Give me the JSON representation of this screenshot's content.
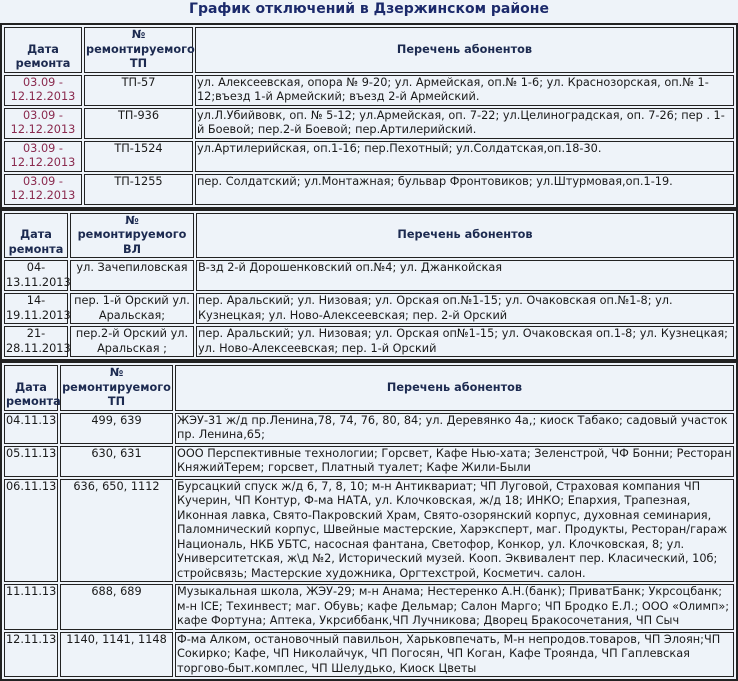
{
  "title": "График отключений в Дзержинском районе",
  "colors": {
    "title": "#1c2a6b",
    "date_highlight": "#8a2a4e",
    "background": "#eef3f9"
  },
  "table_tp": {
    "headers": [
      "Дата ремонта",
      "№ ремонтируемого ТП",
      "Перечень абонентов"
    ],
    "rows": [
      {
        "date": "03.09 - 12.12.2013",
        "id": "ТП-57",
        "subscribers": "ул. Алексеевская, опора № 9-20; ул. Армейская, оп.№ 1-6; ул. Краснозорская, оп.№ 1-12;въезд 1-й Армейский; въезд 2-й Армейский."
      },
      {
        "date": "03.09 - 12.12.2013",
        "id": "ТП-936",
        "subscribers": "ул.Л.Убийвовк, оп. № 5-12; ул.Армейская, оп. 7-22; ул.Целиноградская, оп. 7-26; пер . 1-й Боевой; пер.2-й Боевой; пер.Артилерийский."
      },
      {
        "date": "03.09 - 12.12.2013",
        "id": "ТП-1524",
        "subscribers": "ул.Артилерийская, оп.1-16; пер.Пехотный; ул.Солдатская,оп.18-30."
      },
      {
        "date": "03.09 - 12.12.2013",
        "id": "ТП-1255",
        "subscribers": "пер. Солдатский; ул.Монтажная; бульвар Фронтовиков; ул.Штурмовая,оп.1-19."
      }
    ]
  },
  "table_vl": {
    "headers": [
      "Дата ремонта",
      "№ ремонтируемого ВЛ",
      "Перечень абонентов"
    ],
    "rows": [
      {
        "date": "04-13.11.2013",
        "id": "ул. Зачепиловская",
        "subscribers": "В-зд 2-й Дорошенковский оп.№4; ул. Джанкойская"
      },
      {
        "date": "14-19.11.2013",
        "id": "пер. 1-й Орский ул. Аральская;",
        "subscribers": "пер. Аральский; ул. Низовая; ул. Орская оп.№1-15; ул. Очаковская оп.№1-8; ул. Кузнецкая; ул. Ново-Алексеевская; пер. 2-й Орский"
      },
      {
        "date": "21-28.11.2013",
        "id": "пер.2-й Орский ул. Аральская ;",
        "subscribers": "пер. Аральский; ул. Низовая; ул. Орская оп№1-15; ул. Очаковская оп.1-8; ул. Кузнецкая; ул. Ново-Алексеевская; пер. 1-й Орский"
      }
    ]
  },
  "table_tp2": {
    "headers": [
      "Дата ремонта",
      "№ ремонтируемого ТП",
      "Перечень абонентов"
    ],
    "rows": [
      {
        "date": "04.11.13",
        "id": "499, 639",
        "subscribers": "ЖЭУ-31 ж/д пр.Ленина,78, 74, 76, 80, 84; ул. Деревянко 4а,; киоск Табако; садовый участок пр. Ленина,65;"
      },
      {
        "date": "05.11.13",
        "id": "630, 631",
        "subscribers": "ООО Перспективные технологии; Горсвет, Кафе Нью-хата; Зеленстрой, ЧФ Бонни; Ресторан КняжийТерем; горсвет, Платный туалет; Кафе Жили-Были"
      },
      {
        "date": "06.11.13",
        "id": "636, 650, 1112",
        "subscribers": "Бурсацкий спуск ж/д 6, 7, 8, 10; м-н Антиквариат; ЧП Луговой, Страховая компания ЧП Кучерин, ЧП Контур, Ф-ма НАТА, ул. Клочковская, ж/д 18; ИНКО; Епархия, Трапезная, Иконная лавка, Свято-Пакровский Храм, Свято-озорянский корпус, духовная семинария, Паломнический корпус, Швейные мастерские, Харэксперт, маг. Продукты, Ресторан/гараж Националь, НКБ УБТС, насосная фантана, Светофор, Конкор, ул. Клочковская, 8; ул. Университетская, ж\\д №2, Исторический музей. Кооп. Эквивалент пер. Класический, 10б; стройсвязь; Мастерские художника, Оргтехстрой, Косметич. салон."
      },
      {
        "date": "11.11.13",
        "id": "688, 689",
        "subscribers": "Музыкальная школа, ЖЭУ-29; м-н Анама; Нестеренко А.Н.(банк); ПриватБанк; Укрсоцбанк; м-н ICE; Техинвест; маг. Обувь; кафе Дельмар; Салон Марго; ЧП Бродко Е.Л.; ООО «Олимп»; кафе Фортуна; Аптека, Укрсиббанк,ЧП Лучникова; Дворец Бракосочетания, ЧП Сыч"
      },
      {
        "date": "12.11.13",
        "id": "1140, 1141, 1148",
        "subscribers": "Ф-ма Алком, остановочный павильон, Харьковпечать, М-н непродов.товаров, ЧП Элоян;ЧП Сокирко; Кафе, ЧП Николайчук, ЧП Погосян, ЧП Коган, Кафе Троянда, ЧП Гаплевская торгово-быт.комплес, ЧП Шелудько, Киоск Цветы"
      }
    ]
  }
}
